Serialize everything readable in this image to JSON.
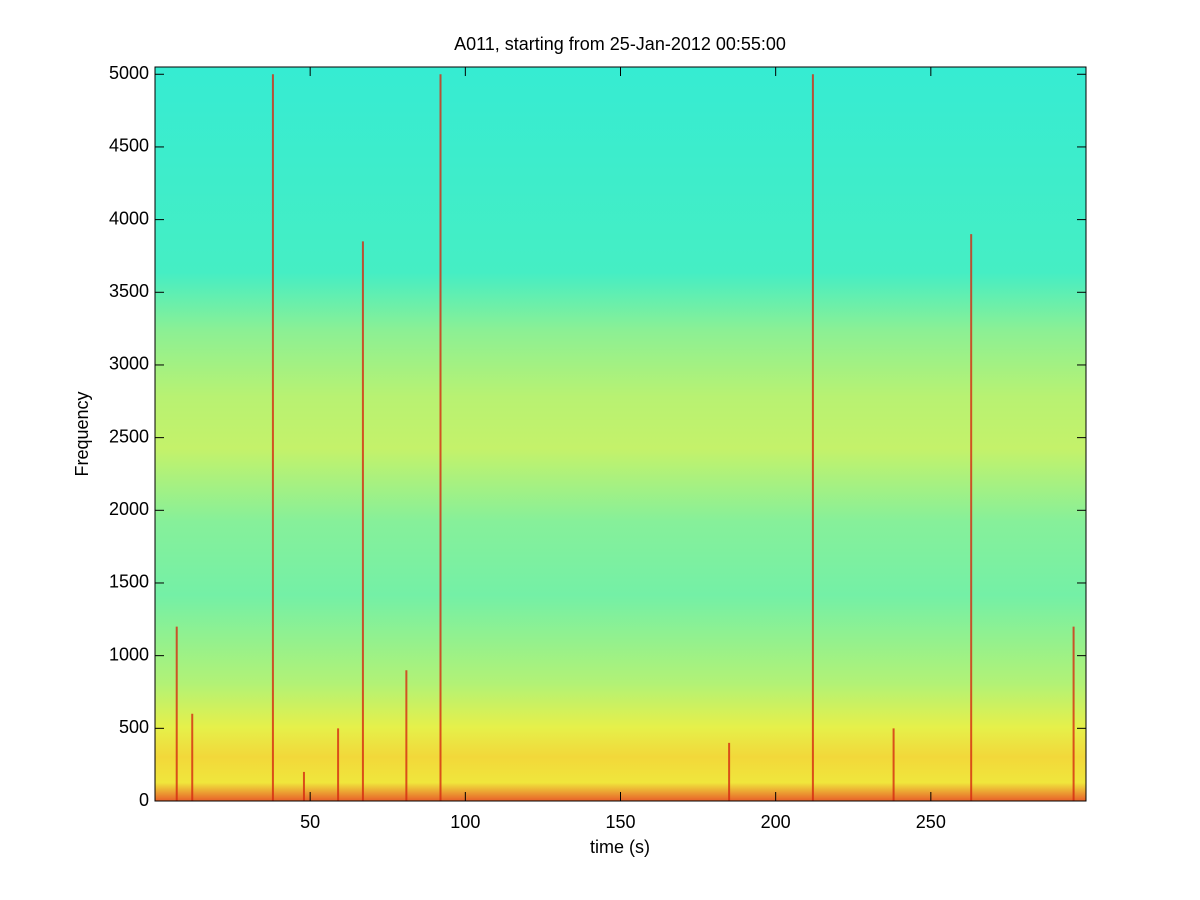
{
  "chart_data": {
    "type": "spectrogram",
    "title": "A011, starting from 25-Jan-2012 00:55:00",
    "xlabel": "time (s)",
    "ylabel": "Frequency",
    "xlim": [
      0,
      300
    ],
    "ylim": [
      0,
      5050
    ],
    "xticks": [
      50,
      100,
      150,
      200,
      250
    ],
    "yticks": [
      0,
      500,
      1000,
      1500,
      2000,
      2500,
      3000,
      3500,
      4000,
      4500,
      5000
    ],
    "streaks": [
      {
        "x": 7,
        "top": 1200
      },
      {
        "x": 12,
        "top": 600
      },
      {
        "x": 38,
        "top": 5000
      },
      {
        "x": 48,
        "top": 200
      },
      {
        "x": 59,
        "top": 500
      },
      {
        "x": 67,
        "top": 3850
      },
      {
        "x": 81,
        "top": 900
      },
      {
        "x": 92,
        "top": 5000
      },
      {
        "x": 185,
        "top": 400
      },
      {
        "x": 212,
        "top": 5000
      },
      {
        "x": 238,
        "top": 500
      },
      {
        "x": 263,
        "top": 3900
      },
      {
        "x": 296,
        "top": 1200
      }
    ],
    "streak_color": "#d42a10"
  }
}
